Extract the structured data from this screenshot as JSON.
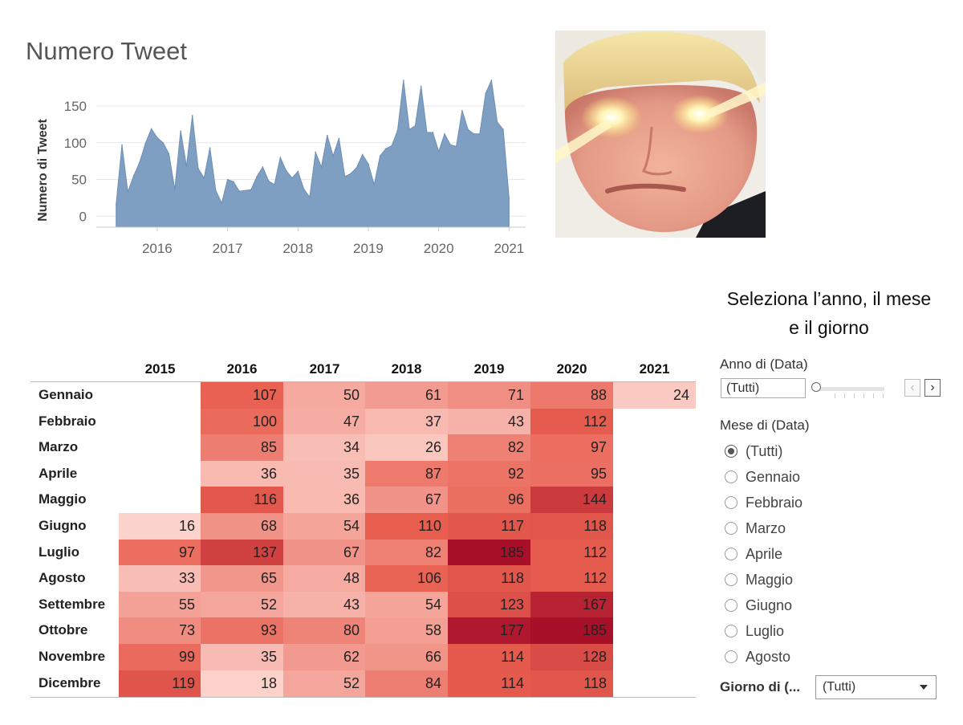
{
  "chart_data": [
    {
      "type": "area",
      "title": "Numero Tweet",
      "ylabel": "Numero di Tweet",
      "xlabel": "",
      "x_ticks": [
        "2016",
        "2017",
        "2018",
        "2019",
        "2020",
        "2021"
      ],
      "y_ticks": [
        0,
        50,
        100,
        150
      ],
      "ylim": [
        -15,
        185
      ],
      "grid": true,
      "color": "#7f9fc2",
      "x": [
        "2015-06",
        "2015-07",
        "2015-08",
        "2015-09",
        "2015-10",
        "2015-11",
        "2015-12",
        "2016-01",
        "2016-02",
        "2016-03",
        "2016-04",
        "2016-05",
        "2016-06",
        "2016-07",
        "2016-08",
        "2016-09",
        "2016-10",
        "2016-11",
        "2016-12",
        "2017-01",
        "2017-02",
        "2017-03",
        "2017-04",
        "2017-05",
        "2017-06",
        "2017-07",
        "2017-08",
        "2017-09",
        "2017-10",
        "2017-11",
        "2017-12",
        "2018-01",
        "2018-02",
        "2018-03",
        "2018-04",
        "2018-05",
        "2018-06",
        "2018-07",
        "2018-08",
        "2018-09",
        "2018-10",
        "2018-11",
        "2018-12",
        "2019-01",
        "2019-02",
        "2019-03",
        "2019-04",
        "2019-05",
        "2019-06",
        "2019-07",
        "2019-08",
        "2019-09",
        "2019-10",
        "2019-11",
        "2019-12",
        "2020-01",
        "2020-02",
        "2020-03",
        "2020-04",
        "2020-05",
        "2020-06",
        "2020-07",
        "2020-08",
        "2020-09",
        "2020-10",
        "2020-11",
        "2020-12",
        "2021-01"
      ],
      "values": [
        16,
        97,
        33,
        55,
        73,
        99,
        119,
        107,
        100,
        85,
        36,
        116,
        68,
        137,
        65,
        52,
        93,
        35,
        18,
        50,
        47,
        34,
        35,
        36,
        54,
        67,
        48,
        43,
        80,
        62,
        52,
        61,
        37,
        26,
        87,
        67,
        110,
        82,
        106,
        54,
        58,
        66,
        84,
        71,
        43,
        82,
        92,
        96,
        117,
        185,
        118,
        123,
        177,
        114,
        114,
        88,
        112,
        97,
        95,
        144,
        118,
        112,
        112,
        167,
        185,
        128,
        118,
        24
      ]
    },
    {
      "type": "heatmap",
      "title": "",
      "columns": [
        "2015",
        "2016",
        "2017",
        "2018",
        "2019",
        "2020",
        "2021"
      ],
      "rows": [
        "Gennaio",
        "Febbraio",
        "Marzo",
        "Aprile",
        "Maggio",
        "Giugno",
        "Luglio",
        "Agosto",
        "Settembre",
        "Ottobre",
        "Novembre",
        "Dicembre"
      ],
      "values": [
        [
          null,
          107,
          50,
          61,
          71,
          88,
          24
        ],
        [
          null,
          100,
          47,
          37,
          43,
          112,
          null
        ],
        [
          null,
          85,
          34,
          26,
          82,
          97,
          null
        ],
        [
          null,
          36,
          35,
          87,
          92,
          95,
          null
        ],
        [
          null,
          116,
          36,
          67,
          96,
          144,
          null
        ],
        [
          16,
          68,
          54,
          110,
          117,
          118,
          null
        ],
        [
          97,
          137,
          67,
          82,
          185,
          112,
          null
        ],
        [
          33,
          65,
          48,
          106,
          118,
          112,
          null
        ],
        [
          55,
          52,
          43,
          54,
          123,
          167,
          null
        ],
        [
          73,
          93,
          80,
          58,
          177,
          185,
          null
        ],
        [
          99,
          35,
          62,
          66,
          114,
          128,
          null
        ],
        [
          119,
          18,
          52,
          84,
          114,
          118,
          null
        ]
      ],
      "color_low": "#fcd3cc",
      "color_high": "#a8102a"
    }
  ],
  "filters": {
    "title_line1": "Seleziona l’anno, il mese",
    "title_line2": "e il giorno",
    "year_label": "Anno di (Data)",
    "year_value": "(Tutti)",
    "month_label": "Mese di (Data)",
    "month_options": [
      "(Tutti)",
      "Gennaio",
      "Febbraio",
      "Marzo",
      "Aprile",
      "Maggio",
      "Giugno",
      "Luglio",
      "Agosto"
    ],
    "month_selected": 0,
    "day_label": "Giorno di (...",
    "day_value": "(Tutti)",
    "prev_icon": "chevron-left-icon",
    "next_icon": "chevron-right-icon"
  }
}
